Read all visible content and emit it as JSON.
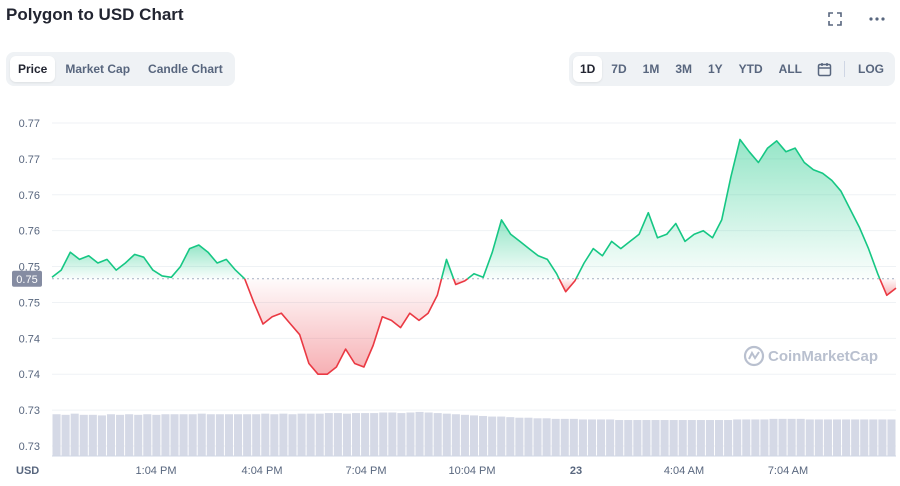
{
  "header": {
    "title": "Polygon to USD Chart"
  },
  "tabs": [
    "Price",
    "Market Cap",
    "Candle Chart"
  ],
  "active_tab": 0,
  "ranges": [
    "1D",
    "7D",
    "1M",
    "3M",
    "1Y",
    "YTD",
    "ALL"
  ],
  "active_range": 0,
  "log_label": "LOG",
  "watermark": "CoinMarketCap",
  "colors": {
    "up": "#16c784",
    "down": "#ea3943",
    "volume": "#d5d9e6",
    "current_label_bg": "#858ca2"
  },
  "chart_data": {
    "type": "line",
    "currency_label": "USD",
    "y_tick_labels": [
      "0.77",
      "0.77",
      "0.76",
      "0.76",
      "0.75",
      "0.75",
      "0.74",
      "0.74",
      "0.73",
      "0.73"
    ],
    "x_tick_labels": [
      "1:04 PM",
      "4:04 PM",
      "7:04 PM",
      "10:04 PM",
      "23",
      "4:04 AM",
      "7:04 AM"
    ],
    "ylim": [
      0.7285,
      0.7735
    ],
    "reference_price": 0.7518,
    "current_price_label": "0.75",
    "grid": true,
    "price_series": [
      [
        0,
        0.752
      ],
      [
        1,
        0.753
      ],
      [
        2,
        0.7555
      ],
      [
        3,
        0.7545
      ],
      [
        4,
        0.755
      ],
      [
        5,
        0.754
      ],
      [
        6,
        0.7545
      ],
      [
        7,
        0.753
      ],
      [
        8,
        0.754
      ],
      [
        9,
        0.7552
      ],
      [
        10,
        0.7548
      ],
      [
        11,
        0.753
      ],
      [
        12,
        0.7522
      ],
      [
        13,
        0.752
      ],
      [
        14,
        0.7535
      ],
      [
        15,
        0.756
      ],
      [
        16,
        0.7565
      ],
      [
        17,
        0.7555
      ],
      [
        18,
        0.754
      ],
      [
        19,
        0.7545
      ],
      [
        20,
        0.753
      ],
      [
        21,
        0.7518
      ],
      [
        22,
        0.7485
      ],
      [
        23,
        0.7455
      ],
      [
        24,
        0.7465
      ],
      [
        25,
        0.747
      ],
      [
        26,
        0.7455
      ],
      [
        27,
        0.744
      ],
      [
        28,
        0.74
      ],
      [
        29,
        0.7385
      ],
      [
        30,
        0.7385
      ],
      [
        31,
        0.7395
      ],
      [
        32,
        0.742
      ],
      [
        33,
        0.74
      ],
      [
        34,
        0.7395
      ],
      [
        35,
        0.7425
      ],
      [
        36,
        0.7465
      ],
      [
        37,
        0.746
      ],
      [
        38,
        0.745
      ],
      [
        39,
        0.747
      ],
      [
        40,
        0.746
      ],
      [
        41,
        0.747
      ],
      [
        42,
        0.7495
      ],
      [
        43,
        0.7545
      ],
      [
        44,
        0.751
      ],
      [
        45,
        0.7515
      ],
      [
        46,
        0.7525
      ],
      [
        47,
        0.752
      ],
      [
        48,
        0.7555
      ],
      [
        49,
        0.76
      ],
      [
        50,
        0.758
      ],
      [
        51,
        0.757
      ],
      [
        52,
        0.756
      ],
      [
        53,
        0.755
      ],
      [
        54,
        0.7545
      ],
      [
        55,
        0.7525
      ],
      [
        56,
        0.75
      ],
      [
        57,
        0.7515
      ],
      [
        58,
        0.754
      ],
      [
        59,
        0.756
      ],
      [
        60,
        0.755
      ],
      [
        61,
        0.757
      ],
      [
        62,
        0.756
      ],
      [
        63,
        0.757
      ],
      [
        64,
        0.758
      ],
      [
        65,
        0.761
      ],
      [
        66,
        0.7575
      ],
      [
        67,
        0.758
      ],
      [
        68,
        0.7595
      ],
      [
        69,
        0.757
      ],
      [
        70,
        0.758
      ],
      [
        71,
        0.7585
      ],
      [
        72,
        0.7575
      ],
      [
        73,
        0.76
      ],
      [
        74,
        0.766
      ],
      [
        75,
        0.7712
      ],
      [
        76,
        0.7695
      ],
      [
        77,
        0.768
      ],
      [
        78,
        0.77
      ],
      [
        79,
        0.771
      ],
      [
        80,
        0.7695
      ],
      [
        81,
        0.77
      ],
      [
        82,
        0.768
      ],
      [
        83,
        0.767
      ],
      [
        84,
        0.7665
      ],
      [
        85,
        0.7655
      ],
      [
        86,
        0.764
      ],
      [
        87,
        0.7615
      ],
      [
        88,
        0.759
      ],
      [
        89,
        0.756
      ],
      [
        90,
        0.7525
      ],
      [
        91,
        0.7495
      ],
      [
        92,
        0.7505
      ]
    ],
    "volume_series": [
      0.72,
      0.71,
      0.73,
      0.71,
      0.71,
      0.7,
      0.72,
      0.71,
      0.72,
      0.71,
      0.72,
      0.71,
      0.72,
      0.72,
      0.72,
      0.72,
      0.73,
      0.72,
      0.72,
      0.72,
      0.72,
      0.72,
      0.72,
      0.73,
      0.72,
      0.73,
      0.72,
      0.73,
      0.73,
      0.73,
      0.74,
      0.74,
      0.73,
      0.74,
      0.74,
      0.74,
      0.75,
      0.75,
      0.74,
      0.75,
      0.76,
      0.75,
      0.74,
      0.73,
      0.72,
      0.71,
      0.7,
      0.69,
      0.68,
      0.68,
      0.67,
      0.66,
      0.66,
      0.65,
      0.65,
      0.64,
      0.64,
      0.64,
      0.63,
      0.63,
      0.63,
      0.63,
      0.62,
      0.62,
      0.62,
      0.62,
      0.62,
      0.62,
      0.62,
      0.62,
      0.62,
      0.62,
      0.62,
      0.62,
      0.62,
      0.63,
      0.63,
      0.63,
      0.63,
      0.64,
      0.64,
      0.64,
      0.64,
      0.63,
      0.63,
      0.63,
      0.63,
      0.63,
      0.63,
      0.63,
      0.63,
      0.63,
      0.63
    ]
  }
}
